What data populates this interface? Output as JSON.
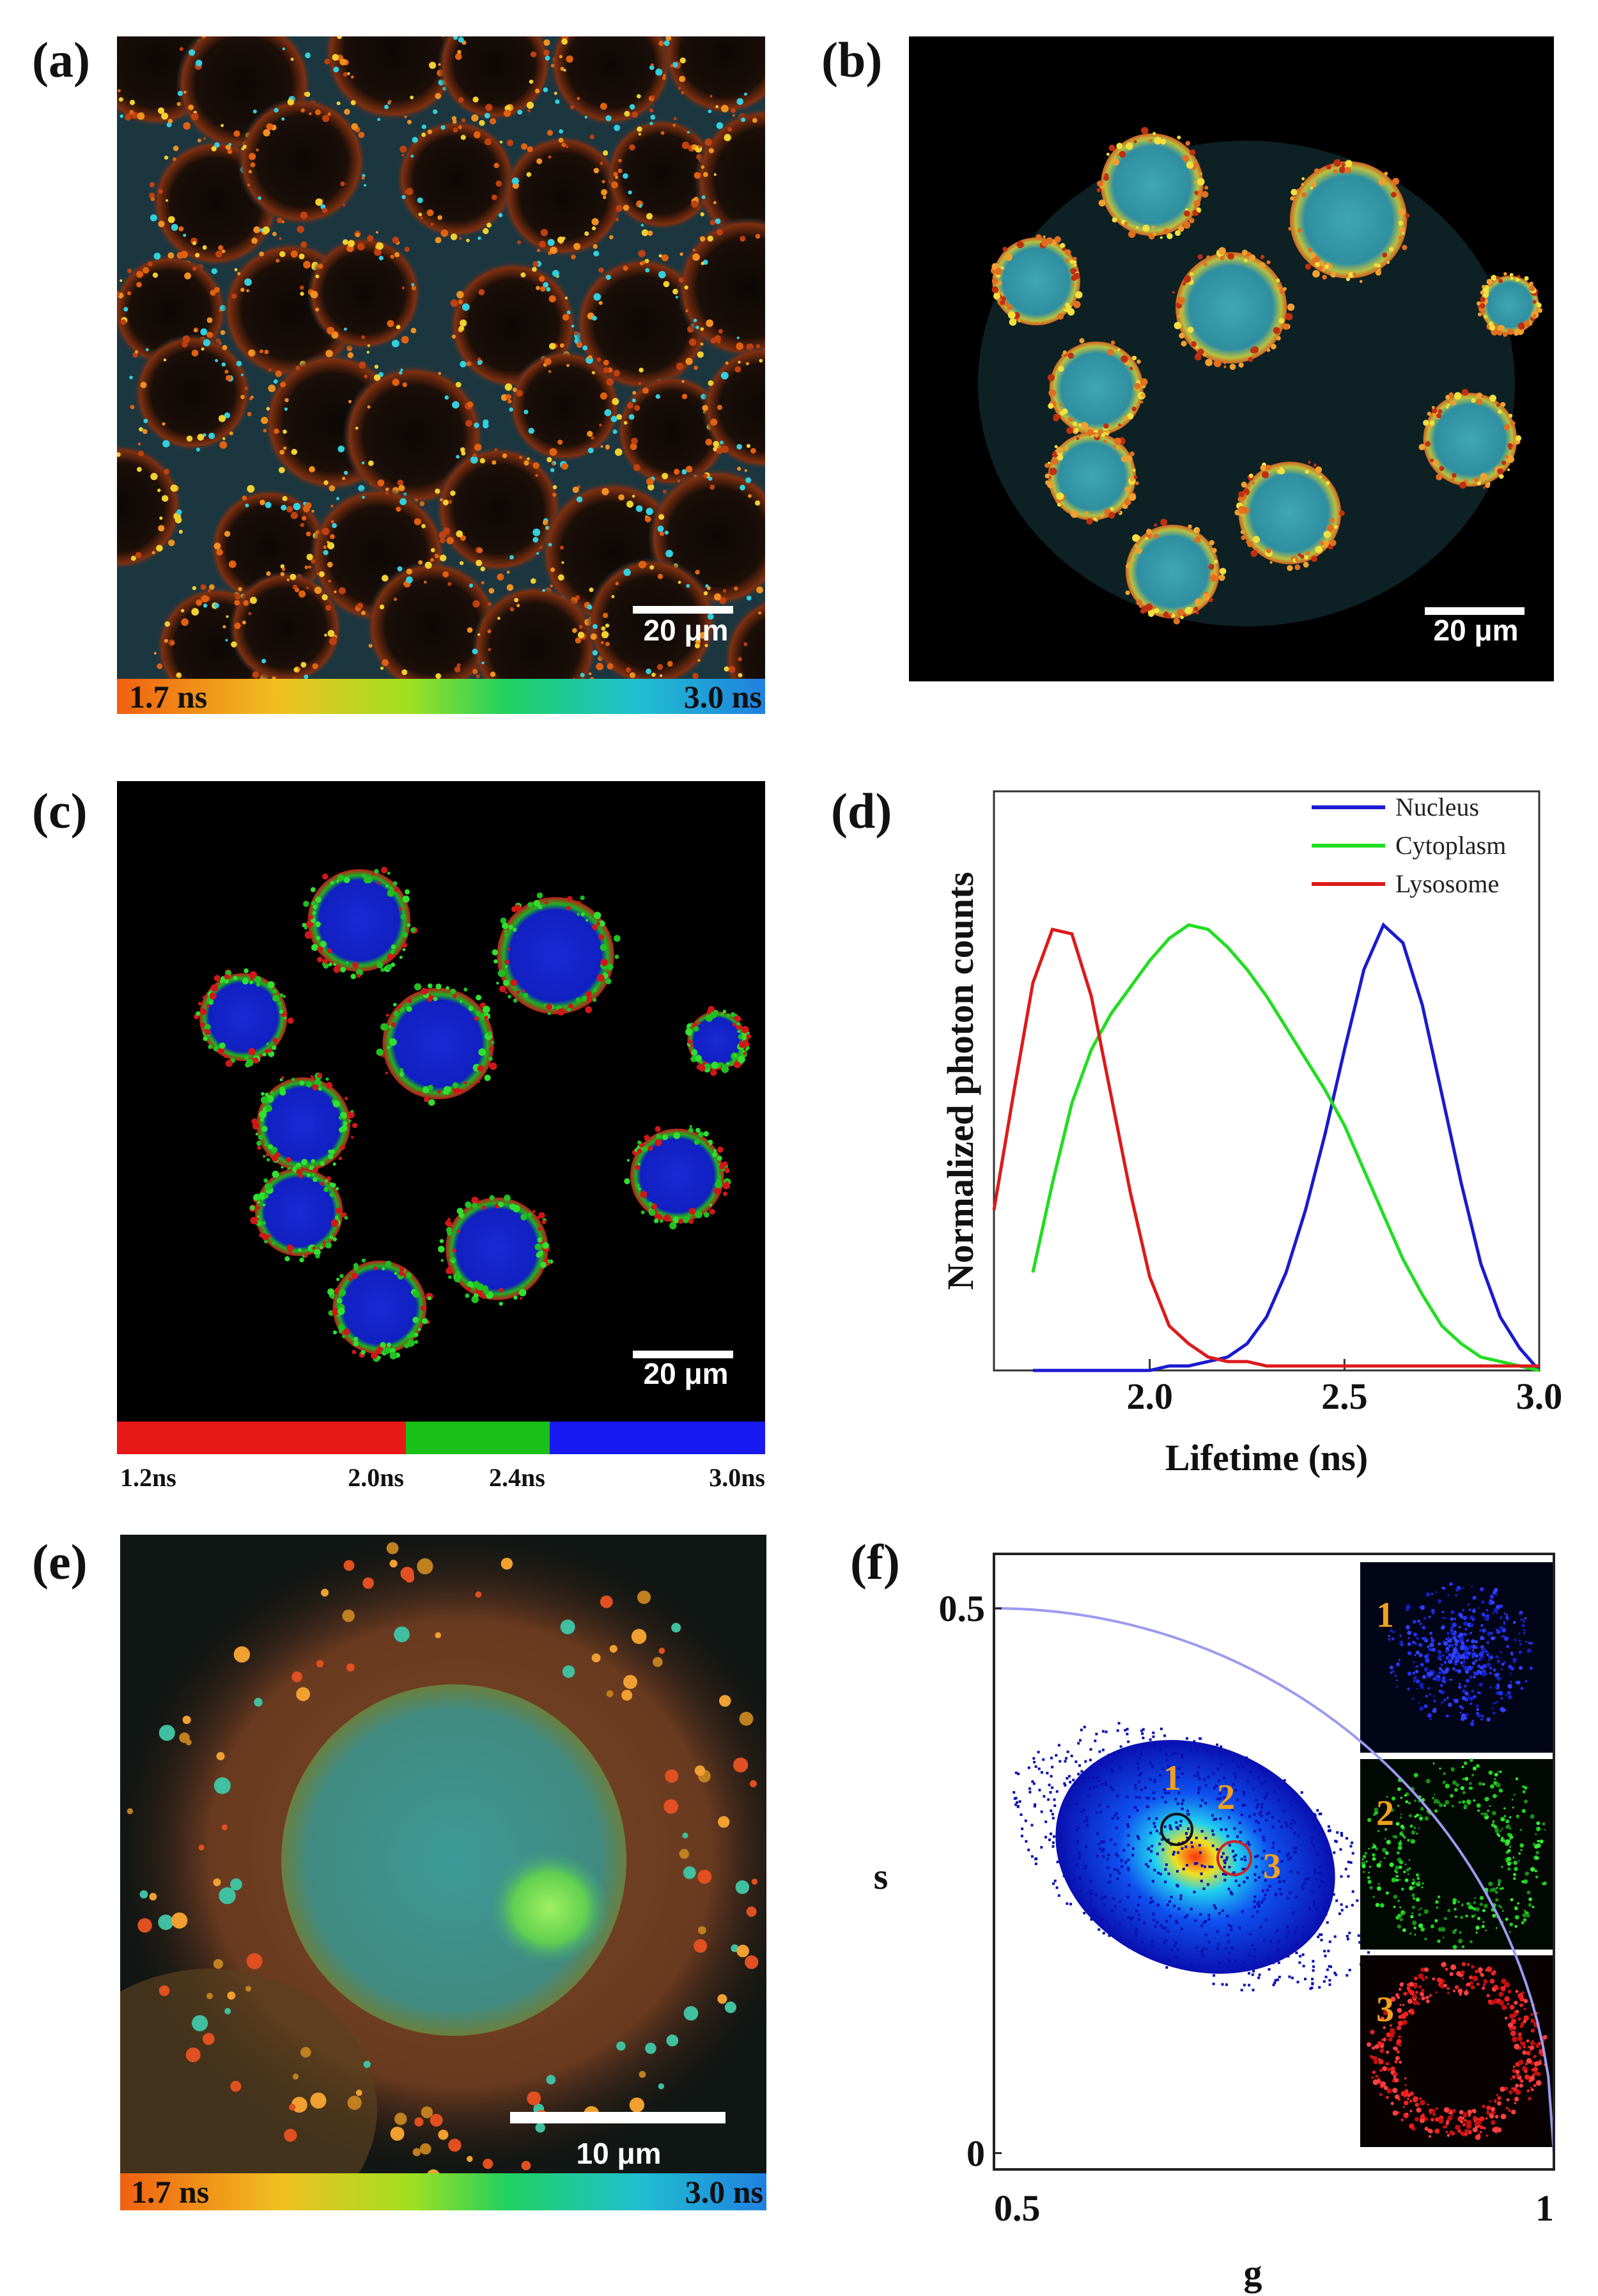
{
  "panels": {
    "a": {
      "label": "(a)",
      "scale_bar": "20 μm",
      "colorbar": [
        "1.7 ns",
        "3.0 ns"
      ]
    },
    "b": {
      "label": "(b)",
      "scale_bar": "20 μm"
    },
    "c": {
      "label": "(c)",
      "scale_bar": "20 μm",
      "colorbar": [
        "1.2ns",
        "2.0ns",
        "2.4ns",
        "3.0ns"
      ]
    },
    "d": {
      "label": "(d)"
    },
    "e": {
      "label": "(e)",
      "scale_bar": "10 μm",
      "colorbar": [
        "1.7 ns",
        "3.0 ns"
      ]
    },
    "f": {
      "label": "(f)",
      "cluster_labels": [
        "1",
        "2",
        "3"
      ],
      "inset_labels": [
        "1",
        "2",
        "3"
      ]
    }
  },
  "chart_data": [
    {
      "type": "line",
      "x_label": "Lifetime (ns)",
      "y_label": "Normalized photon counts",
      "x": [
        1.6,
        1.65,
        1.7,
        1.75,
        1.8,
        1.85,
        1.9,
        1.95,
        2.0,
        2.05,
        2.1,
        2.15,
        2.2,
        2.25,
        2.3,
        2.35,
        2.4,
        2.45,
        2.5,
        2.55,
        2.6,
        2.65,
        2.7,
        2.75,
        2.8,
        2.85,
        2.9,
        2.95,
        3.0
      ],
      "series": [
        {
          "name": "Nucleus",
          "color": "#1a1ad0",
          "values": [
            null,
            null,
            0.0,
            0.0,
            0.0,
            0.0,
            0.0,
            0.0,
            0.0,
            0.01,
            0.01,
            0.02,
            0.03,
            0.06,
            0.12,
            0.22,
            0.36,
            0.53,
            0.72,
            0.9,
            1.0,
            0.96,
            0.82,
            0.62,
            0.42,
            0.24,
            0.12,
            0.05,
            0.0
          ]
        },
        {
          "name": "Cytoplasm",
          "color": "#22dd22",
          "values": [
            null,
            null,
            0.22,
            0.42,
            0.6,
            0.72,
            0.8,
            0.86,
            0.92,
            0.97,
            1.0,
            0.99,
            0.95,
            0.9,
            0.84,
            0.77,
            0.7,
            0.63,
            0.55,
            0.45,
            0.35,
            0.25,
            0.17,
            0.1,
            0.06,
            0.03,
            0.02,
            0.01,
            0.0
          ]
        },
        {
          "name": "Lysosome",
          "color": "#dd1a1a",
          "values": [
            0.36,
            0.62,
            0.87,
            0.99,
            0.98,
            0.84,
            0.62,
            0.4,
            0.21,
            0.1,
            0.06,
            0.03,
            0.02,
            0.02,
            0.01,
            0.01,
            0.01,
            0.01,
            0.01,
            0.01,
            0.01,
            0.01,
            0.01,
            0.01,
            0.01,
            0.01,
            0.01,
            0.01,
            0.01
          ]
        }
      ],
      "xlim": [
        1.6,
        3.0
      ],
      "xticks": [
        {
          "value": 2,
          "label": "2.0"
        },
        2.5,
        {
          "value": 3,
          "label": "3.0"
        }
      ],
      "ylim": [
        0,
        1.3
      ],
      "legend": "upper right"
    },
    {
      "type": "phasor",
      "x_label": "g",
      "y_label": "s",
      "xlim": [
        0.5,
        1
      ],
      "xticks": [
        0.5,
        1
      ],
      "ylim": [
        -0.015,
        0.55
      ],
      "yticks": [
        0,
        0.5
      ],
      "semicircle_color": "#9b9bf0"
    }
  ]
}
